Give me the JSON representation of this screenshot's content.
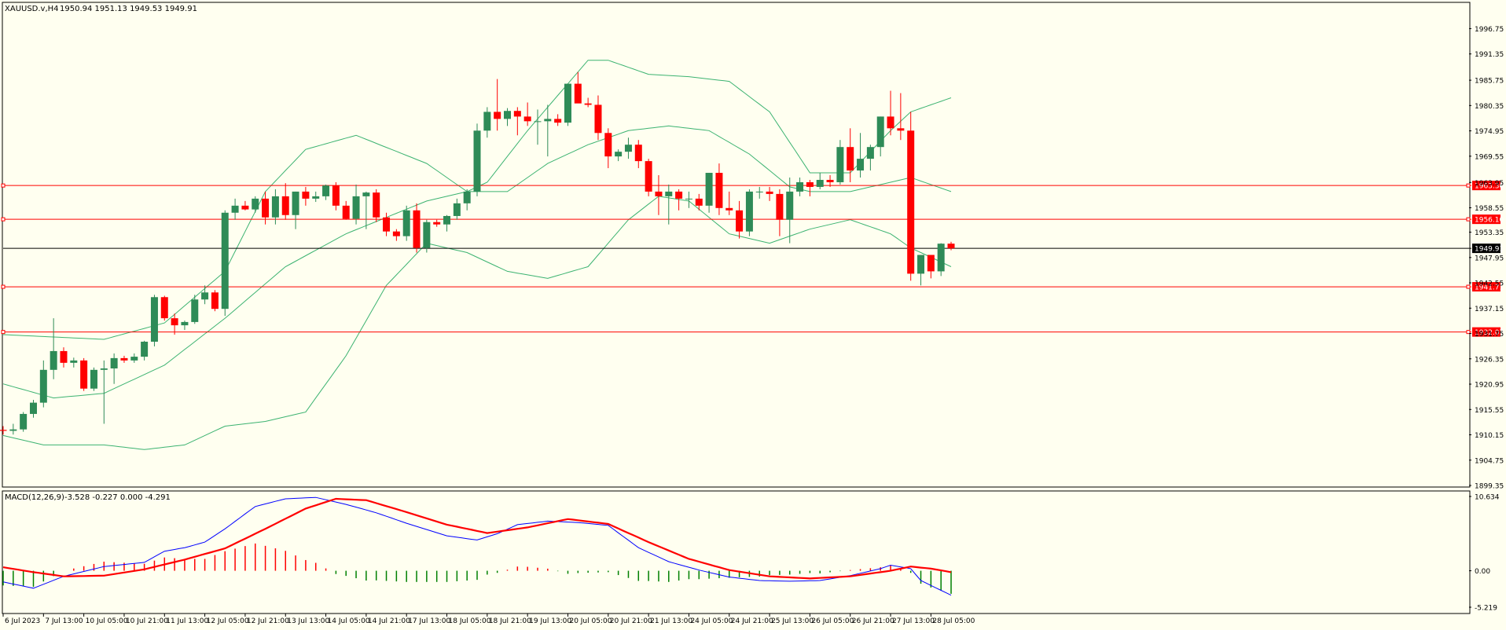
{
  "header": {
    "symbol": "XAUUSD.v,H4",
    "ohlc": "1950.94 1951.13 1949.53 1949.91"
  },
  "macd_header": {
    "label": "MACD(12,26,9)",
    "values": "-3.528 -0.227 0.000 -4.291"
  },
  "colors": {
    "background": "#fffff0",
    "bull": "#2e8b57",
    "bear": "#ff0000",
    "band": "#3cb371",
    "level": "#ff0000",
    "current": "#000000",
    "macd_line": "#0000ff",
    "signal_line": "#ff0000"
  },
  "chart_data": [
    {
      "type": "candlestick",
      "ylim": [
        1899.35,
        1999.5
      ],
      "yticks": [
        "1996.75",
        "1991.35",
        "1985.75",
        "1980.35",
        "1974.95",
        "1969.55",
        "1963.95",
        "1958.55",
        "1953.35",
        "1947.95",
        "1942.55",
        "1937.15",
        "1931.75",
        "1926.35",
        "1920.95",
        "1915.55",
        "1910.15",
        "1904.75",
        "1899.35"
      ],
      "xticks": [
        "6 Jul 2023",
        "7 Jul 13:00",
        "10 Jul 05:00",
        "10 Jul 21:00",
        "11 Jul 13:00",
        "12 Jul 05:00",
        "12 Jul 21:00",
        "13 Jul 13:00",
        "14 Jul 05:00",
        "14 Jul 21:00",
        "17 Jul 13:00",
        "18 Jul 05:00",
        "18 Jul 21:00",
        "19 Jul 13:00",
        "20 Jul 05:00",
        "20 Jul 21:00",
        "21 Jul 13:00",
        "24 Jul 05:00",
        "24 Jul 21:00",
        "25 Jul 13:00",
        "26 Jul 05:00",
        "26 Jul 21:00",
        "27 Jul 13:00",
        "28 Jul 05:00"
      ],
      "candles": [
        [
          1911.2,
          1912.0,
          1910.2,
          1911.0
        ],
        [
          1911.0,
          1912.5,
          1910.2,
          1911.3
        ],
        [
          1911.3,
          1915.0,
          1910.8,
          1914.6
        ],
        [
          1914.6,
          1917.6,
          1913.8,
          1917.0
        ],
        [
          1917.0,
          1926.0,
          1916.0,
          1924.0
        ],
        [
          1924.0,
          1935.0,
          1922.0,
          1928.0
        ],
        [
          1928.0,
          1928.8,
          1924.5,
          1925.5
        ],
        [
          1925.5,
          1926.6,
          1924.5,
          1926.0
        ],
        [
          1926.0,
          1926.5,
          1919.5,
          1920.0
        ],
        [
          1920.0,
          1924.5,
          1919.5,
          1924.0
        ],
        [
          1924.0,
          1926.0,
          1912.5,
          1924.3
        ],
        [
          1924.3,
          1927.5,
          1921.0,
          1926.5
        ],
        [
          1926.5,
          1927.0,
          1925.5,
          1926.0
        ],
        [
          1926.0,
          1927.5,
          1925.5,
          1926.8
        ],
        [
          1926.8,
          1930.2,
          1926.0,
          1930.0
        ],
        [
          1930.0,
          1940.0,
          1929.0,
          1939.5
        ],
        [
          1939.5,
          1939.8,
          1934.5,
          1935.0
        ],
        [
          1935.0,
          1936.0,
          1931.5,
          1933.5
        ],
        [
          1933.5,
          1934.5,
          1932.5,
          1934.2
        ],
        [
          1934.2,
          1940.0,
          1933.8,
          1939.0
        ],
        [
          1939.0,
          1942.0,
          1938.0,
          1940.5
        ],
        [
          1940.5,
          1941.0,
          1936.5,
          1937.0
        ],
        [
          1937.0,
          1958.0,
          1935.5,
          1957.5
        ],
        [
          1957.5,
          1960.5,
          1956.0,
          1959.0
        ],
        [
          1959.0,
          1960.0,
          1958.0,
          1958.2
        ],
        [
          1958.2,
          1961.0,
          1957.5,
          1960.5
        ],
        [
          1960.5,
          1962.0,
          1955.0,
          1956.5
        ],
        [
          1956.5,
          1962.5,
          1955.0,
          1961.0
        ],
        [
          1961.0,
          1963.8,
          1956.0,
          1957.0
        ],
        [
          1957.0,
          1962.0,
          1954.0,
          1962.0
        ],
        [
          1962.0,
          1963.0,
          1959.0,
          1960.5
        ],
        [
          1960.5,
          1962.0,
          1959.8,
          1961.0
        ],
        [
          1961.0,
          1963.5,
          1960.2,
          1963.3
        ],
        [
          1963.3,
          1964.0,
          1958.0,
          1959.0
        ],
        [
          1959.0,
          1960.0,
          1956.0,
          1956.2
        ],
        [
          1956.2,
          1963.5,
          1955.0,
          1961.0
        ],
        [
          1961.0,
          1962.0,
          1954.0,
          1961.8
        ],
        [
          1961.8,
          1962.5,
          1955.5,
          1956.5
        ],
        [
          1956.5,
          1957.5,
          1952.5,
          1953.5
        ],
        [
          1953.5,
          1954.0,
          1951.5,
          1952.5
        ],
        [
          1952.5,
          1959.0,
          1951.5,
          1958.0
        ],
        [
          1958.0,
          1959.5,
          1949.0,
          1950.0
        ],
        [
          1950.0,
          1956.0,
          1949.0,
          1955.5
        ],
        [
          1955.5,
          1956.0,
          1954.5,
          1955.0
        ],
        [
          1955.0,
          1957.0,
          1953.5,
          1956.8
        ],
        [
          1956.8,
          1960.5,
          1956.0,
          1959.5
        ],
        [
          1959.5,
          1962.5,
          1958.0,
          1962.0
        ],
        [
          1962.0,
          1976.5,
          1961.0,
          1975.0
        ],
        [
          1975.0,
          1980.0,
          1973.5,
          1979.0
        ],
        [
          1979.0,
          1986.0,
          1975.0,
          1977.5
        ],
        [
          1977.5,
          1979.8,
          1976.0,
          1979.2
        ],
        [
          1979.2,
          1980.0,
          1974.0,
          1978.0
        ],
        [
          1978.0,
          1981.0,
          1976.0,
          1977.0
        ],
        [
          1977.0,
          1979.5,
          1972.0,
          1977.0
        ],
        [
          1977.0,
          1980.5,
          1969.5,
          1977.5
        ],
        [
          1977.5,
          1978.5,
          1976.0,
          1976.7
        ],
        [
          1976.7,
          1985.0,
          1976.0,
          1985.0
        ],
        [
          1985.0,
          1987.5,
          1981.0,
          1980.8
        ],
        [
          1980.8,
          1982.0,
          1980.0,
          1980.5
        ],
        [
          1980.5,
          1982.5,
          1973.0,
          1974.5
        ],
        [
          1974.5,
          1975.5,
          1967.0,
          1969.5
        ],
        [
          1969.5,
          1971.0,
          1968.5,
          1970.5
        ],
        [
          1970.5,
          1973.5,
          1969.0,
          1972.0
        ],
        [
          1972.0,
          1973.0,
          1967.0,
          1968.5
        ],
        [
          1968.5,
          1969.0,
          1961.0,
          1962.0
        ],
        [
          1962.0,
          1965.5,
          1957.0,
          1961.0
        ],
        [
          1961.0,
          1963.5,
          1955.0,
          1962.0
        ],
        [
          1962.0,
          1962.5,
          1958.0,
          1960.5
        ],
        [
          1960.5,
          1962.0,
          1958.5,
          1960.5
        ],
        [
          1960.5,
          1961.5,
          1958.0,
          1959.0
        ],
        [
          1959.0,
          1966.0,
          1957.5,
          1966.0
        ],
        [
          1966.0,
          1968.0,
          1957.0,
          1958.5
        ],
        [
          1958.5,
          1962.0,
          1957.0,
          1958.0
        ],
        [
          1958.0,
          1960.0,
          1952.0,
          1953.5
        ],
        [
          1953.5,
          1962.5,
          1952.5,
          1962.0
        ],
        [
          1962.0,
          1963.0,
          1960.5,
          1962.0
        ],
        [
          1962.0,
          1963.0,
          1960.0,
          1961.5
        ],
        [
          1961.5,
          1962.5,
          1952.5,
          1956.0
        ],
        [
          1956.0,
          1965.0,
          1951.0,
          1962.0
        ],
        [
          1962.0,
          1965.0,
          1961.0,
          1964.0
        ],
        [
          1964.0,
          1964.5,
          1961.0,
          1963.0
        ],
        [
          1963.0,
          1966.0,
          1962.5,
          1964.5
        ],
        [
          1964.5,
          1965.5,
          1963.0,
          1964.0
        ],
        [
          1964.0,
          1973.0,
          1963.5,
          1971.5
        ],
        [
          1971.5,
          1975.5,
          1964.0,
          1966.5
        ],
        [
          1966.5,
          1974.5,
          1965.0,
          1969.0
        ],
        [
          1969.0,
          1972.0,
          1966.5,
          1971.5
        ],
        [
          1971.5,
          1978.0,
          1969.5,
          1978.0
        ],
        [
          1978.0,
          1983.5,
          1974.0,
          1975.5
        ],
        [
          1975.5,
          1983.0,
          1973.0,
          1975.0
        ],
        [
          1975.0,
          1979.0,
          1943.0,
          1944.5
        ],
        [
          1944.5,
          1948.5,
          1942.0,
          1948.5
        ],
        [
          1948.5,
          1948.5,
          1943.5,
          1945.0
        ],
        [
          1945.0,
          1951.0,
          1944.0,
          1950.9
        ],
        [
          1950.9,
          1951.3,
          1949.5,
          1949.9
        ]
      ],
      "levels": [
        {
          "price": 1963.3,
          "label": "1963.30"
        },
        {
          "price": 1956.1,
          "label": "1956.10"
        },
        {
          "price": 1941.71,
          "label": "1941.71"
        },
        {
          "price": 1932.07,
          "label": "1932.07"
        }
      ],
      "current": {
        "price": 1949.91,
        "label": "1949.91"
      },
      "bollinger": {
        "upper_anchors": [
          [
            0,
            1931.5
          ],
          [
            10,
            1930.5
          ],
          [
            16,
            1934
          ],
          [
            22,
            1945
          ],
          [
            26,
            1962
          ],
          [
            30,
            1971
          ],
          [
            35,
            1974
          ],
          [
            42,
            1968
          ],
          [
            46,
            1962
          ],
          [
            48,
            1964
          ],
          [
            52,
            1975
          ],
          [
            56,
            1985
          ],
          [
            58,
            1990
          ],
          [
            60,
            1990
          ],
          [
            64,
            1987
          ],
          [
            68,
            1986.5
          ],
          [
            72,
            1985.5
          ],
          [
            76,
            1979
          ],
          [
            80,
            1966
          ],
          [
            84,
            1966
          ],
          [
            88,
            1975
          ],
          [
            90,
            1979
          ],
          [
            94,
            1982
          ]
        ],
        "middle_anchors": [
          [
            0,
            1921
          ],
          [
            5,
            1918
          ],
          [
            10,
            1919
          ],
          [
            16,
            1925
          ],
          [
            22,
            1935
          ],
          [
            28,
            1946
          ],
          [
            34,
            1953
          ],
          [
            42,
            1960
          ],
          [
            46,
            1962
          ],
          [
            50,
            1962
          ],
          [
            54,
            1968
          ],
          [
            58,
            1972
          ],
          [
            62,
            1975
          ],
          [
            66,
            1976
          ],
          [
            70,
            1975
          ],
          [
            74,
            1970
          ],
          [
            78,
            1963
          ],
          [
            80,
            1962
          ],
          [
            84,
            1962
          ],
          [
            88,
            1964
          ],
          [
            90,
            1965
          ],
          [
            94,
            1962
          ]
        ],
        "lower_anchors": [
          [
            0,
            1910
          ],
          [
            4,
            1908
          ],
          [
            10,
            1908
          ],
          [
            14,
            1907
          ],
          [
            18,
            1908
          ],
          [
            22,
            1912
          ],
          [
            26,
            1913
          ],
          [
            30,
            1915
          ],
          [
            34,
            1927
          ],
          [
            38,
            1942
          ],
          [
            42,
            1951
          ],
          [
            46,
            1949
          ],
          [
            50,
            1945
          ],
          [
            54,
            1943.5
          ],
          [
            58,
            1946
          ],
          [
            62,
            1956
          ],
          [
            65,
            1961
          ],
          [
            68,
            1960
          ],
          [
            72,
            1953
          ],
          [
            76,
            1951
          ],
          [
            80,
            1954
          ],
          [
            84,
            1956
          ],
          [
            88,
            1953
          ],
          [
            90,
            1950
          ],
          [
            94,
            1946
          ]
        ]
      }
    },
    {
      "type": "macd",
      "ylim": [
        -5.219,
        10.634
      ],
      "yticks": [
        "10.634",
        "0.00",
        "-5.219"
      ],
      "macd_anchors": [
        [
          0,
          -1.6
        ],
        [
          3,
          -2.5
        ],
        [
          6,
          -0.8
        ],
        [
          10,
          0.6
        ],
        [
          14,
          1.2
        ],
        [
          16,
          2.8
        ],
        [
          18,
          3.3
        ],
        [
          20,
          4.1
        ],
        [
          22,
          6
        ],
        [
          25,
          9.2
        ],
        [
          28,
          10.3
        ],
        [
          31,
          10.5
        ],
        [
          34,
          9.5
        ],
        [
          37,
          8.3
        ],
        [
          40,
          6.8
        ],
        [
          44,
          5
        ],
        [
          47,
          4.4
        ],
        [
          49,
          5.3
        ],
        [
          51,
          6.6
        ],
        [
          54,
          7.1
        ],
        [
          57,
          6.9
        ],
        [
          60,
          6.5
        ],
        [
          63,
          3.3
        ],
        [
          66,
          1.3
        ],
        [
          69,
          0.1
        ],
        [
          72,
          -0.9
        ],
        [
          75,
          -1.4
        ],
        [
          78,
          -1.5
        ],
        [
          81,
          -1.4
        ],
        [
          84,
          -0.7
        ],
        [
          87,
          0.3
        ],
        [
          88,
          0.8
        ],
        [
          90,
          0.3
        ],
        [
          91,
          -1.4
        ],
        [
          94,
          -3.5
        ]
      ],
      "signal_anchors": [
        [
          0,
          0.5
        ],
        [
          3,
          -0.2
        ],
        [
          6,
          -0.8
        ],
        [
          10,
          -0.7
        ],
        [
          14,
          0.2
        ],
        [
          18,
          1.6
        ],
        [
          22,
          3.2
        ],
        [
          26,
          6
        ],
        [
          30,
          8.9
        ],
        [
          33,
          10.3
        ],
        [
          36,
          10.1
        ],
        [
          40,
          8.4
        ],
        [
          44,
          6.6
        ],
        [
          48,
          5.4
        ],
        [
          52,
          6.2
        ],
        [
          56,
          7.4
        ],
        [
          60,
          6.7
        ],
        [
          64,
          4.1
        ],
        [
          68,
          1.7
        ],
        [
          72,
          0.1
        ],
        [
          76,
          -0.8
        ],
        [
          80,
          -1.1
        ],
        [
          84,
          -0.8
        ],
        [
          88,
          0
        ],
        [
          90,
          0.6
        ],
        [
          92,
          0.3
        ],
        [
          94,
          -0.2
        ]
      ]
    }
  ]
}
